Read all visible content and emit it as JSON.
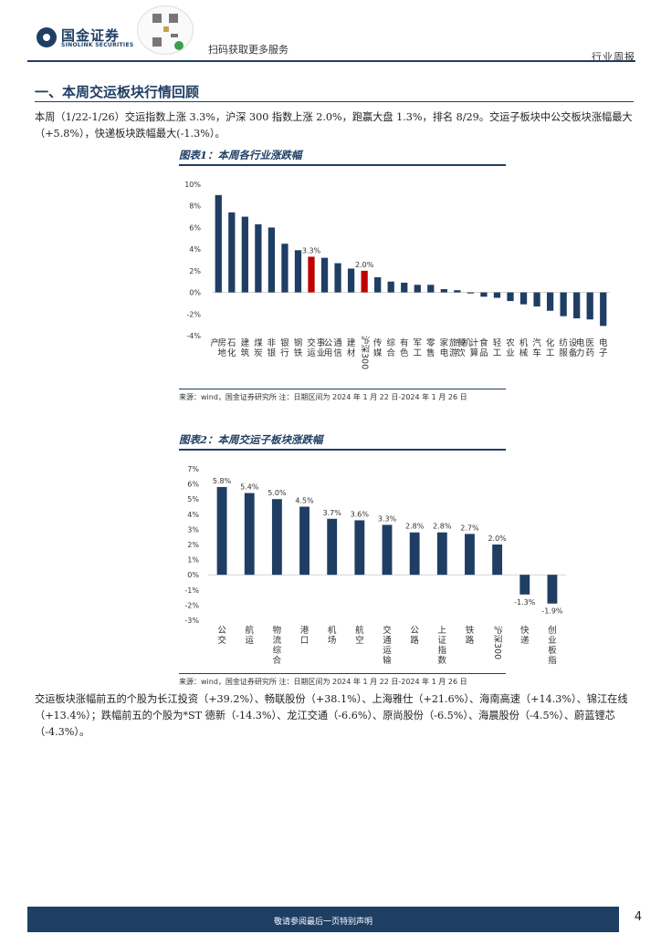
{
  "header": {
    "logo_cn": "国金证券",
    "logo_en": "SINOLINK SECURITIES",
    "qr_caption": "扫码获取更多服务",
    "report_type": "行业周报"
  },
  "section": {
    "title": "一、本周交运板块行情回顾",
    "intro": "本周（1/22-1/26）交运指数上涨 3.3%，沪深 300 指数上涨 2.0%，跑赢大盘 1.3%，排名 8/29。交运子板块中公交板块涨幅最大（+5.8%），快递板块跌幅最大(-1.3%）。",
    "stocks_text": "交运板块涨幅前五的个股为长江投资（+39.2%）、畅联股份（+38.1%）、上海雅仕（+21.6%）、海南高速（+14.3%）、锦江在线（+13.4%）；跌幅前五的个股为*ST 德新（-14.3%）、龙江交通（-6.6%）、原尚股份（-6.5%）、海晨股份（-4.5%）、蔚蓝锂芯（-4.3%）。"
  },
  "chart_data": [
    {
      "type": "bar",
      "title": "图表1：本周各行业涨跌幅",
      "categories": [
        "房地产",
        "石化",
        "建筑",
        "煤炭",
        "非银",
        "银行",
        "钢铁",
        "交运",
        "公用事业",
        "通信",
        "建材",
        "沪深300",
        "传媒",
        "综合",
        "有色",
        "军工",
        "零售",
        "家电",
        "餐饮旅游",
        "计算机",
        "食品",
        "轻工",
        "农业",
        "机械",
        "汽车",
        "化工",
        "纺服",
        "电力设备",
        "医药",
        "电子"
      ],
      "values": [
        9.0,
        7.4,
        7.0,
        6.3,
        6.0,
        4.5,
        3.9,
        3.3,
        3.2,
        2.7,
        2.2,
        2.0,
        1.4,
        1.0,
        0.9,
        0.7,
        0.7,
        0.3,
        0.2,
        -0.1,
        -0.4,
        -0.5,
        -0.8,
        -1.1,
        -1.3,
        -1.7,
        -2.2,
        -2.4,
        -2.5,
        -3.1
      ],
      "highlight": [
        "交运",
        "沪深300"
      ],
      "data_labels": {
        "交运": "3.3%",
        "沪深300": "2.0%"
      },
      "y_ticks": [
        "10%",
        "8%",
        "6%",
        "4%",
        "2%",
        "0%",
        "-2%",
        "-4%"
      ],
      "ylim": [
        -4,
        10
      ],
      "colors": {
        "bar": "#1f3e64",
        "highlight": "#c00000"
      },
      "source": "来源：wind，国金证券研究所    注：日期区间为 2024 年 1 月 22 日-2024 年 1 月 26 日"
    },
    {
      "type": "bar",
      "title": "图表2：本周交运子板块涨跌幅",
      "categories": [
        "公交",
        "航运",
        "物流综合",
        "港口",
        "机场",
        "航空",
        "交通运输",
        "公路",
        "上证指数",
        "铁路",
        "沪深300",
        "快递",
        "创业板指"
      ],
      "values": [
        5.8,
        5.4,
        5.0,
        4.5,
        3.7,
        3.6,
        3.3,
        2.8,
        2.8,
        2.7,
        2.0,
        -1.3,
        -1.9
      ],
      "labels": [
        "5.8%",
        "5.4%",
        "5.0%",
        "4.5%",
        "3.7%",
        "3.6%",
        "3.3%",
        "2.8%",
        "2.8%",
        "2.7%",
        "2.0%",
        "-1.3%",
        "-1.9%"
      ],
      "y_ticks": [
        "7%",
        "6%",
        "5%",
        "4%",
        "3%",
        "2%",
        "1%",
        "0%",
        "-1%",
        "-2%",
        "-3%"
      ],
      "ylim": [
        -3,
        7
      ],
      "colors": {
        "bar": "#1f3e64"
      },
      "source": "来源：wind，国金证券研究所    注：日期区间为 2024 年 1 月 22 日-2024 年 1 月 26 日"
    }
  ],
  "footer": {
    "disclaimer": "敬请参阅最后一页特别声明",
    "page": "4"
  }
}
